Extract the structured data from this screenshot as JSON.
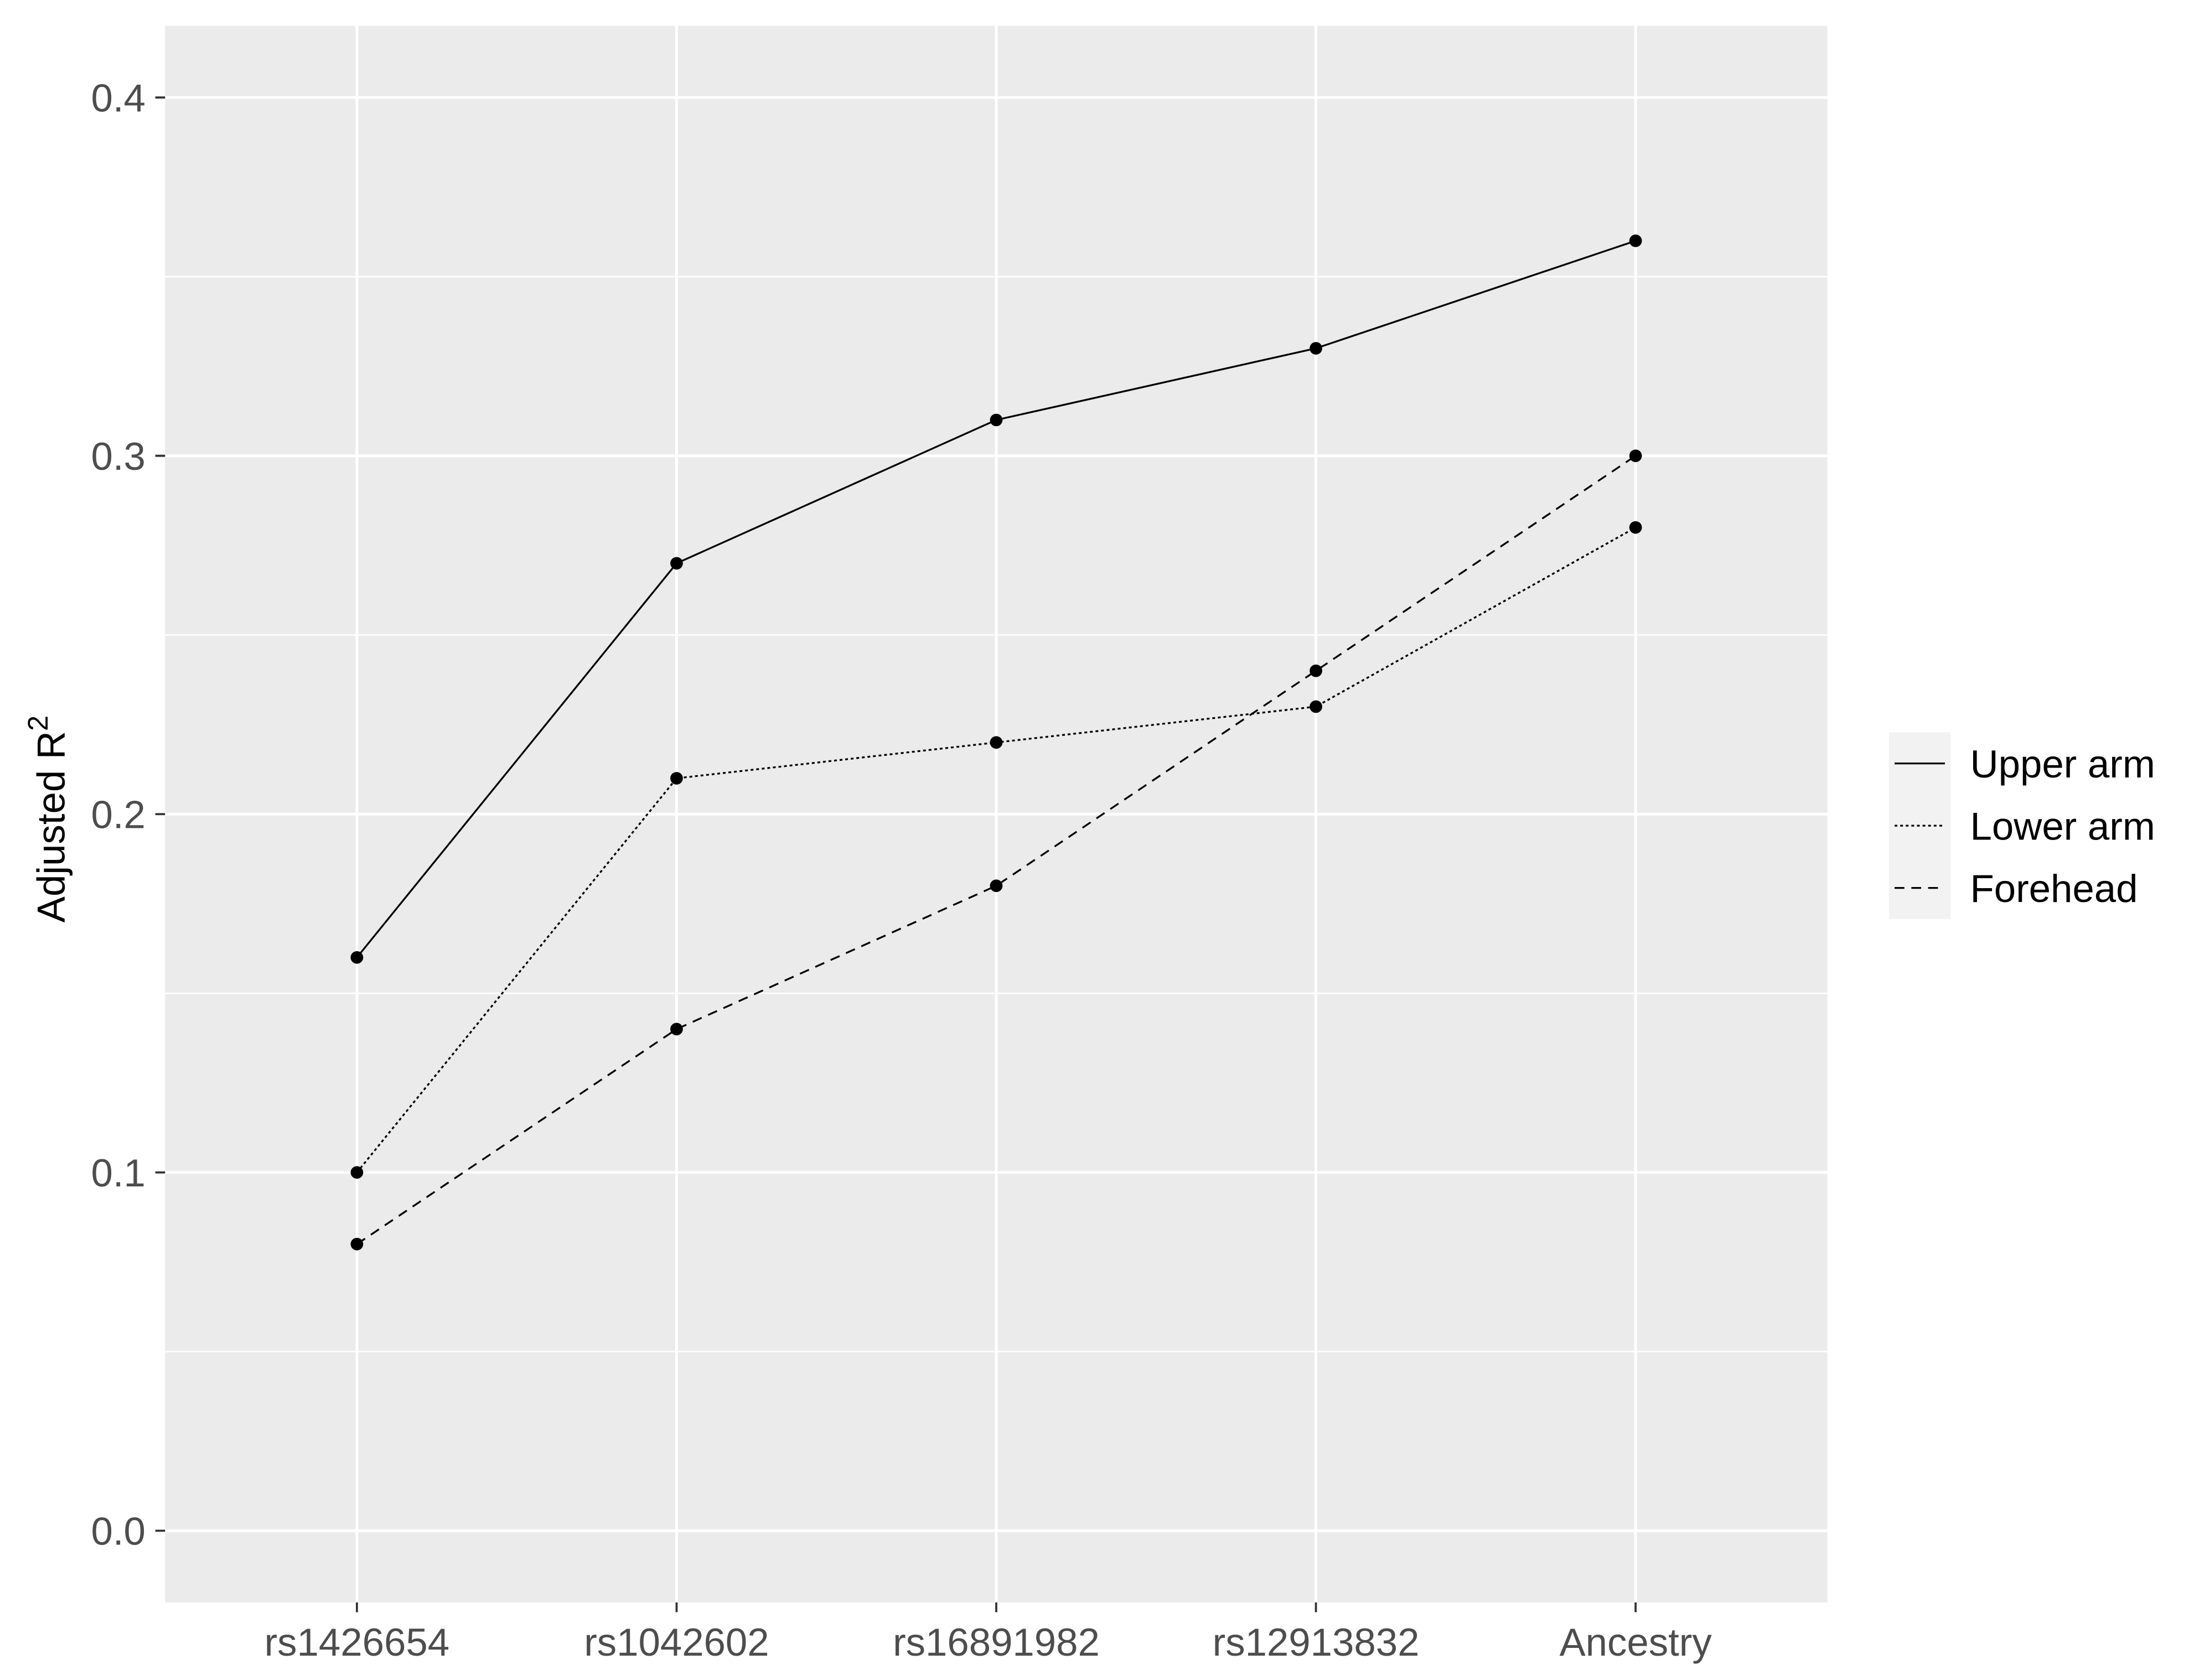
{
  "chart_data": {
    "type": "line",
    "ylabel": {
      "text": "Adjusted R",
      "superscript": "2"
    },
    "categories": [
      "rs1426654",
      "rs1042602",
      "rs16891982",
      "rs12913832",
      "Ancestry"
    ],
    "series": [
      {
        "name": "Upper arm",
        "color": "#000000",
        "linetype": "solid",
        "values": [
          0.16,
          0.27,
          0.31,
          0.33,
          0.36
        ]
      },
      {
        "name": "Lower arm",
        "color": "#000000",
        "linetype": "dotted",
        "values": [
          0.1,
          0.21,
          0.22,
          0.23,
          0.28
        ]
      },
      {
        "name": "Forehead",
        "color": "#000000",
        "linetype": "dashed",
        "values": [
          0.08,
          0.14,
          0.18,
          0.24,
          0.3
        ]
      }
    ],
    "ylim": [
      -0.02,
      0.42
    ],
    "yticks": [
      {
        "value": 0,
        "label": "0.0"
      },
      0.1,
      0.2,
      0.3,
      0.4
    ],
    "grid": true,
    "minor_grid": true,
    "markers": true,
    "legend": "right"
  }
}
